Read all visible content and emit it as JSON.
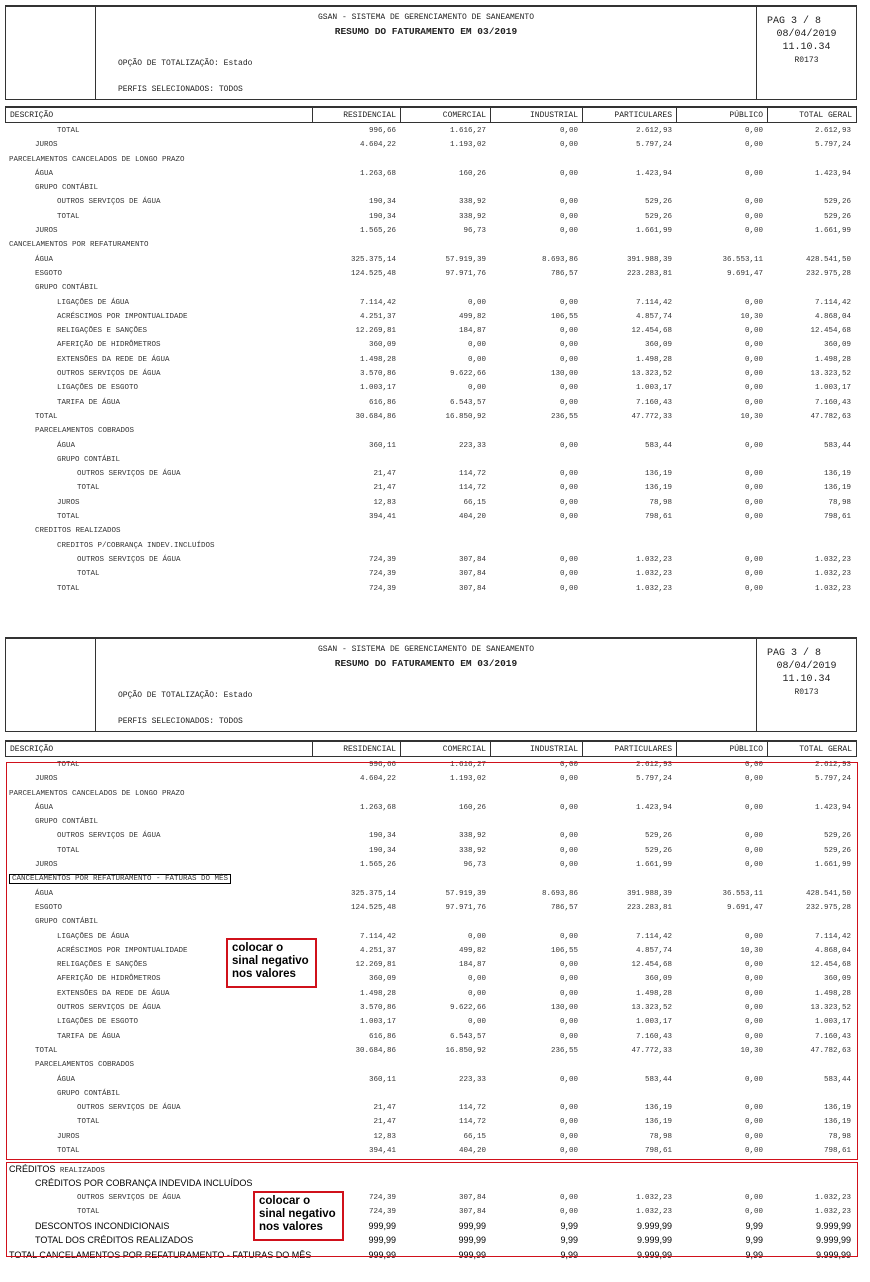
{
  "header": {
    "system": "GSAN - SISTEMA DE GERENCIAMENTO DE SANEAMENTO",
    "title": "RESUMO DO FATURAMENTO EM 03/2019",
    "option_label": "OPÇÃO DE TOTALIZAÇÃO:",
    "option_value": "Estado",
    "profiles_label": "PERFIS SELECIONADOS:",
    "profiles_value": "TODOS",
    "page": "PAG 3 / 8",
    "date": "08/04/2019",
    "time": "11.10.34",
    "report_code": "R0173"
  },
  "columns": [
    "DESCRIÇÃO",
    "RESIDENCIAL",
    "COMERCIAL",
    "INDUSTRIAL",
    "PARTICULARES",
    "PÚBLICO",
    "TOTAL GERAL"
  ],
  "page1_rows": [
    {
      "d": "TOTAL",
      "l": 2,
      "v": [
        "996,66",
        "1.616,27",
        "0,00",
        "2.612,93",
        "0,00",
        "2.612,93"
      ]
    },
    {
      "d": "JUROS",
      "l": 1,
      "v": [
        "4.604,22",
        "1.193,02",
        "0,00",
        "5.797,24",
        "0,00",
        "5.797,24"
      ]
    },
    {
      "d": "PARCELAMENTOS CANCELADOS DE LONGO PRAZO",
      "l": 0,
      "v": []
    },
    {
      "d": "ÁGUA",
      "l": 1,
      "v": [
        "1.263,68",
        "160,26",
        "0,00",
        "1.423,94",
        "0,00",
        "1.423,94"
      ]
    },
    {
      "d": "GRUPO CONTÁBIL",
      "l": 1,
      "v": []
    },
    {
      "d": "OUTROS SERVIÇOS DE ÁGUA",
      "l": 2,
      "v": [
        "190,34",
        "338,92",
        "0,00",
        "529,26",
        "0,00",
        "529,26"
      ]
    },
    {
      "d": "TOTAL",
      "l": 2,
      "v": [
        "190,34",
        "338,92",
        "0,00",
        "529,26",
        "0,00",
        "529,26"
      ]
    },
    {
      "d": "JUROS",
      "l": 1,
      "v": [
        "1.565,26",
        "96,73",
        "0,00",
        "1.661,99",
        "0,00",
        "1.661,99"
      ]
    },
    {
      "d": "CANCELAMENTOS POR REFATURAMENTO",
      "l": 0,
      "v": []
    },
    {
      "d": "ÁGUA",
      "l": 1,
      "v": [
        "325.375,14",
        "57.919,39",
        "8.693,86",
        "391.988,39",
        "36.553,11",
        "428.541,50"
      ]
    },
    {
      "d": "ESGOTO",
      "l": 1,
      "v": [
        "124.525,48",
        "97.971,76",
        "786,57",
        "223.283,81",
        "9.691,47",
        "232.975,28"
      ]
    },
    {
      "d": "GRUPO CONTÁBIL",
      "l": 1,
      "v": []
    },
    {
      "d": "LIGAÇÕES DE ÁGUA",
      "l": 2,
      "v": [
        "7.114,42",
        "0,00",
        "0,00",
        "7.114,42",
        "0,00",
        "7.114,42"
      ]
    },
    {
      "d": "ACRÉSCIMOS POR IMPONTUALIDADE",
      "l": 2,
      "v": [
        "4.251,37",
        "499,82",
        "106,55",
        "4.857,74",
        "10,30",
        "4.868,04"
      ]
    },
    {
      "d": "RELIGAÇÕES E SANÇÕES",
      "l": 2,
      "v": [
        "12.269,81",
        "184,87",
        "0,00",
        "12.454,68",
        "0,00",
        "12.454,68"
      ]
    },
    {
      "d": "AFERIÇÃO DE HIDRÔMETROS",
      "l": 2,
      "v": [
        "360,09",
        "0,00",
        "0,00",
        "360,09",
        "0,00",
        "360,09"
      ]
    },
    {
      "d": "EXTENSÕES DA REDE DE ÁGUA",
      "l": 2,
      "v": [
        "1.498,28",
        "0,00",
        "0,00",
        "1.498,28",
        "0,00",
        "1.498,28"
      ]
    },
    {
      "d": "OUTROS SERVIÇOS DE ÁGUA",
      "l": 2,
      "v": [
        "3.570,86",
        "9.622,66",
        "130,00",
        "13.323,52",
        "0,00",
        "13.323,52"
      ]
    },
    {
      "d": "LIGAÇÕES DE ESGOTO",
      "l": 2,
      "v": [
        "1.003,17",
        "0,00",
        "0,00",
        "1.003,17",
        "0,00",
        "1.003,17"
      ]
    },
    {
      "d": "TARIFA DE ÁGUA",
      "l": 2,
      "v": [
        "616,86",
        "6.543,57",
        "0,00",
        "7.160,43",
        "0,00",
        "7.160,43"
      ]
    },
    {
      "d": "TOTAL",
      "l": 1,
      "v": [
        "30.684,86",
        "16.850,92",
        "236,55",
        "47.772,33",
        "10,30",
        "47.782,63"
      ]
    },
    {
      "d": "PARCELAMENTOS COBRADOS",
      "l": 1,
      "v": []
    },
    {
      "d": "ÁGUA",
      "l": 2,
      "v": [
        "360,11",
        "223,33",
        "0,00",
        "583,44",
        "0,00",
        "583,44"
      ]
    },
    {
      "d": "GRUPO CONTÁBIL",
      "l": 2,
      "v": []
    },
    {
      "d": "OUTROS SERVIÇOS DE ÁGUA",
      "l": 3,
      "v": [
        "21,47",
        "114,72",
        "0,00",
        "136,19",
        "0,00",
        "136,19"
      ]
    },
    {
      "d": "TOTAL",
      "l": 3,
      "v": [
        "21,47",
        "114,72",
        "0,00",
        "136,19",
        "0,00",
        "136,19"
      ]
    },
    {
      "d": "JUROS",
      "l": 2,
      "v": [
        "12,83",
        "66,15",
        "0,00",
        "78,98",
        "0,00",
        "78,98"
      ]
    },
    {
      "d": "TOTAL",
      "l": 2,
      "v": [
        "394,41",
        "404,20",
        "0,00",
        "798,61",
        "0,00",
        "798,61"
      ]
    },
    {
      "d": "CREDITOS REALIZADOS",
      "l": 1,
      "v": []
    },
    {
      "d": "CREDITOS P/COBRANÇA INDEV.INCLUÍDOS",
      "l": 2,
      "v": []
    },
    {
      "d": "OUTROS SERVIÇOS DE ÁGUA",
      "l": 3,
      "v": [
        "724,39",
        "307,84",
        "0,00",
        "1.032,23",
        "0,00",
        "1.032,23"
      ]
    },
    {
      "d": "TOTAL",
      "l": 3,
      "v": [
        "724,39",
        "307,84",
        "0,00",
        "1.032,23",
        "0,00",
        "1.032,23"
      ]
    },
    {
      "d": "TOTAL",
      "l": 2,
      "v": [
        "724,39",
        "307,84",
        "0,00",
        "1.032,23",
        "0,00",
        "1.032,23"
      ]
    }
  ],
  "page2_rows": [
    {
      "d": "TOTAL",
      "l": 2,
      "v": [
        "996,66",
        "1.616,27",
        "0,00",
        "2.612,93",
        "0,00",
        "2.612,93"
      ]
    },
    {
      "d": "JUROS",
      "l": 1,
      "v": [
        "4.604,22",
        "1.193,02",
        "0,00",
        "5.797,24",
        "0,00",
        "5.797,24"
      ]
    },
    {
      "d": "PARCELAMENTOS CANCELADOS DE LONGO PRAZO",
      "l": 0,
      "v": []
    },
    {
      "d": "ÁGUA",
      "l": 1,
      "v": [
        "1.263,68",
        "160,26",
        "0,00",
        "1.423,94",
        "0,00",
        "1.423,94"
      ]
    },
    {
      "d": "GRUPO CONTÁBIL",
      "l": 1,
      "v": []
    },
    {
      "d": "OUTROS SERVIÇOS DE ÁGUA",
      "l": 2,
      "v": [
        "190,34",
        "338,92",
        "0,00",
        "529,26",
        "0,00",
        "529,26"
      ]
    },
    {
      "d": "TOTAL",
      "l": 2,
      "v": [
        "190,34",
        "338,92",
        "0,00",
        "529,26",
        "0,00",
        "529,26"
      ]
    },
    {
      "d": "JUROS",
      "l": 1,
      "v": [
        "1.565,26",
        "96,73",
        "0,00",
        "1.661,99",
        "0,00",
        "1.661,99"
      ]
    },
    {
      "d": "CANCELAMENTOS POR REFATURAMENTO - FATURAS DO MÊS",
      "l": 0,
      "v": [],
      "boxed": true
    },
    {
      "d": "ÁGUA",
      "l": 1,
      "v": [
        "325.375,14",
        "57.919,39",
        "8.693,86",
        "391.988,39",
        "36.553,11",
        "428.541,50"
      ]
    },
    {
      "d": "ESGOTO",
      "l": 1,
      "v": [
        "124.525,48",
        "97.971,76",
        "786,57",
        "223.283,81",
        "9.691,47",
        "232.975,28"
      ]
    },
    {
      "d": "GRUPO CONTÁBIL",
      "l": 1,
      "v": []
    },
    {
      "d": "LIGAÇÕES DE ÁGUA",
      "l": 2,
      "v": [
        "7.114,42",
        "0,00",
        "0,00",
        "7.114,42",
        "0,00",
        "7.114,42"
      ]
    },
    {
      "d": "ACRÉSCIMOS POR IMPONTUALIDADE",
      "l": 2,
      "v": [
        "4.251,37",
        "499,82",
        "106,55",
        "4.857,74",
        "10,30",
        "4.868,04"
      ]
    },
    {
      "d": "RELIGAÇÕES E SANÇÕES",
      "l": 2,
      "v": [
        "12.269,81",
        "184,87",
        "0,00",
        "12.454,68",
        "0,00",
        "12.454,68"
      ]
    },
    {
      "d": "AFERIÇÃO DE HIDRÔMETROS",
      "l": 2,
      "v": [
        "360,09",
        "0,00",
        "0,00",
        "360,09",
        "0,00",
        "360,09"
      ]
    },
    {
      "d": "EXTENSÕES DA REDE DE ÁGUA",
      "l": 2,
      "v": [
        "1.498,28",
        "0,00",
        "0,00",
        "1.498,28",
        "0,00",
        "1.498,28"
      ]
    },
    {
      "d": "OUTROS SERVIÇOS DE ÁGUA",
      "l": 2,
      "v": [
        "3.570,86",
        "9.622,66",
        "130,00",
        "13.323,52",
        "0,00",
        "13.323,52"
      ]
    },
    {
      "d": "LIGAÇÕES DE ESGOTO",
      "l": 2,
      "v": [
        "1.003,17",
        "0,00",
        "0,00",
        "1.003,17",
        "0,00",
        "1.003,17"
      ]
    },
    {
      "d": "TARIFA DE ÁGUA",
      "l": 2,
      "v": [
        "616,86",
        "6.543,57",
        "0,00",
        "7.160,43",
        "0,00",
        "7.160,43"
      ]
    },
    {
      "d": "TOTAL",
      "l": 1,
      "v": [
        "30.684,86",
        "16.850,92",
        "236,55",
        "47.772,33",
        "10,30",
        "47.782,63"
      ]
    },
    {
      "d": "PARCELAMENTOS COBRADOS",
      "l": 1,
      "v": []
    },
    {
      "d": "ÁGUA",
      "l": 2,
      "v": [
        "360,11",
        "223,33",
        "0,00",
        "583,44",
        "0,00",
        "583,44"
      ]
    },
    {
      "d": "GRUPO CONTÁBIL",
      "l": 2,
      "v": []
    },
    {
      "d": "OUTROS SERVIÇOS DE ÁGUA",
      "l": 3,
      "v": [
        "21,47",
        "114,72",
        "0,00",
        "136,19",
        "0,00",
        "136,19"
      ]
    },
    {
      "d": "TOTAL",
      "l": 3,
      "v": [
        "21,47",
        "114,72",
        "0,00",
        "136,19",
        "0,00",
        "136,19"
      ]
    },
    {
      "d": "JUROS",
      "l": 2,
      "v": [
        "12,83",
        "66,15",
        "0,00",
        "78,98",
        "0,00",
        "78,98"
      ]
    },
    {
      "d": "TOTAL",
      "l": 2,
      "v": [
        "394,41",
        "404,20",
        "0,00",
        "798,61",
        "0,00",
        "798,61"
      ]
    }
  ],
  "page2_credit_rows": [
    {
      "d": "CRÉDITOS",
      "d2": " REALIZADOS",
      "l": 0,
      "sans": true,
      "v": []
    },
    {
      "d": "CRÉDITOS POR COBRANÇA INDEVIDA INCLUÍDOS",
      "l": 1,
      "sans": true,
      "v": []
    },
    {
      "d": "OUTROS SERVIÇOS DE ÁGUA",
      "l": 3,
      "v": [
        "724,39",
        "307,84",
        "0,00",
        "1.032,23",
        "0,00",
        "1.032,23"
      ]
    },
    {
      "d": "TOTAL",
      "l": 3,
      "v": [
        "724,39",
        "307,84",
        "0,00",
        "1.032,23",
        "0,00",
        "1.032,23"
      ]
    },
    {
      "d": "DESCONTOS INCONDICIONAIS",
      "l": 1,
      "sans": true,
      "sansv": true,
      "v": [
        "999,99",
        "999,99",
        "9,99",
        "9.999,99",
        "9,99",
        "9.999,99"
      ]
    },
    {
      "d": "TOTAL DOS CRÉDITOS REALIZADOS",
      "l": 1,
      "sans": true,
      "sansv": true,
      "v": [
        "999,99",
        "999,99",
        "9,99",
        "9.999,99",
        "9,99",
        "9.999,99"
      ]
    },
    {
      "d": "TOTAL CANCELAMENTOS POR REFATURAMENTO - FATURAS DO MÊS",
      "l": 0,
      "sans": true,
      "sansv": true,
      "v": [
        "999,99",
        "999,99",
        "9,99",
        "9.999,99",
        "9,99",
        "9.999,99"
      ]
    }
  ],
  "annotations": [
    "colocar o sinal negativo nos valores",
    "colocar o sinal negativo nos valores"
  ],
  "colors": {
    "annotation": "#d0111b"
  }
}
